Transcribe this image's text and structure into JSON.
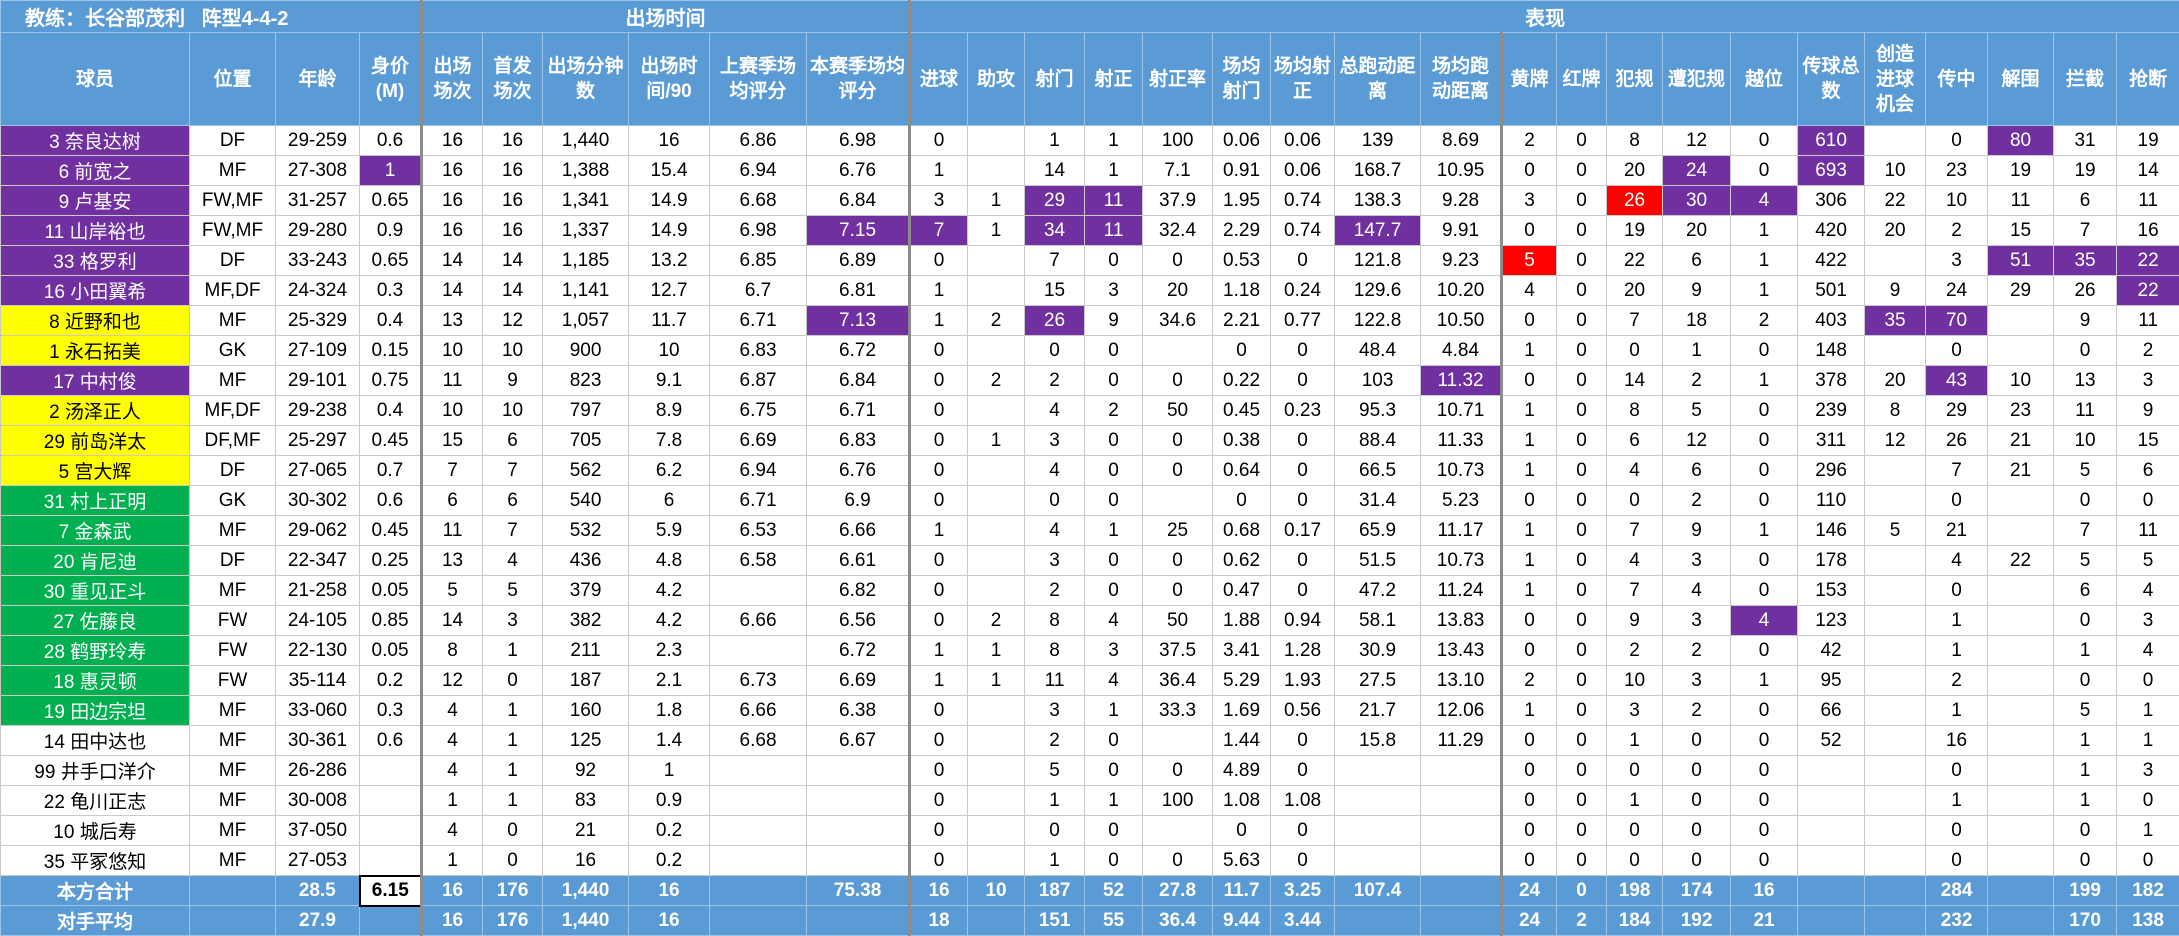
{
  "header": {
    "groups": [
      "教练：长谷部茂利   阵型4-4-2",
      "出场时间",
      "表现"
    ],
    "columns": [
      "球员",
      "位置",
      "年龄",
      "身价(M)",
      "出场场次",
      "首发场次",
      "出场分钟数",
      "出场时间/90",
      "上赛季场均评分",
      "本赛季场均评分",
      "进球",
      "助攻",
      "射门",
      "射正",
      "射正率",
      "场均射门",
      "场均射正",
      "总跑动距离",
      "场均跑动距离",
      "黄牌",
      "红牌",
      "犯规",
      "遭犯规",
      "越位",
      "传球总数",
      "创造进球机会",
      "传中",
      "解围",
      "拦截",
      "抢断"
    ]
  },
  "table": {
    "rows": [
      {
        "bg": "#7030a0",
        "cells": [
          "3 奈良达树",
          "DF",
          "29-259",
          "0.6",
          "16",
          "16",
          "1,440",
          "16",
          "6.86",
          "6.98",
          "0",
          null,
          "1",
          "1",
          "100",
          "0.06",
          "0.06",
          "139",
          "8.69",
          "2",
          "0",
          "8",
          "12",
          "0",
          {
            "text": "610",
            "bg": "#7030a0"
          },
          null,
          "0",
          {
            "text": "80",
            "bg": "#7030a0"
          },
          "31",
          "19"
        ]
      },
      {
        "bg": "#7030a0",
        "cells": [
          "6 前宽之",
          "MF",
          "27-308",
          {
            "text": "1",
            "bg": "#7030a0"
          },
          "16",
          "16",
          "1,388",
          "15.4",
          "6.94",
          "6.76",
          "1",
          null,
          "14",
          "1",
          "7.1",
          "0.91",
          "0.06",
          "168.7",
          "10.95",
          "0",
          "0",
          "20",
          {
            "text": "24",
            "bg": "#7030a0"
          },
          "0",
          {
            "text": "693",
            "bg": "#7030a0"
          },
          "10",
          "23",
          "19",
          "19",
          "14"
        ]
      },
      {
        "bg": "#7030a0",
        "cells": [
          "9 卢基安",
          "FW,MF",
          "31-257",
          "0.65",
          "16",
          "16",
          "1,341",
          "14.9",
          "6.68",
          "6.84",
          "3",
          "1",
          {
            "text": "29",
            "bg": "#7030a0"
          },
          {
            "text": "11",
            "bg": "#7030a0"
          },
          "37.9",
          "1.95",
          "0.74",
          "138.3",
          "9.28",
          "3",
          "0",
          {
            "text": "26",
            "bg": "#ff0000"
          },
          {
            "text": "30",
            "bg": "#7030a0"
          },
          {
            "text": "4",
            "bg": "#7030a0"
          },
          "306",
          "22",
          "10",
          "11",
          "6",
          "11"
        ]
      },
      {
        "bg": "#7030a0",
        "cells": [
          "11 山岸裕也",
          "FW,MF",
          "29-280",
          "0.9",
          "16",
          "16",
          "1,337",
          "14.9",
          "6.98",
          {
            "text": "7.15",
            "bg": "#7030a0"
          },
          {
            "text": "7",
            "bg": "#7030a0"
          },
          "1",
          {
            "text": "34",
            "bg": "#7030a0"
          },
          {
            "text": "11",
            "bg": "#7030a0"
          },
          "32.4",
          "2.29",
          "0.74",
          {
            "text": "147.7",
            "bg": "#7030a0"
          },
          "9.91",
          "0",
          "0",
          "19",
          "20",
          "1",
          "420",
          "20",
          "2",
          "15",
          "7",
          "16"
        ]
      },
      {
        "bg": "#7030a0",
        "cells": [
          "33 格罗利",
          "DF",
          "33-243",
          "0.65",
          "14",
          "14",
          "1,185",
          "13.2",
          "6.85",
          "6.89",
          "0",
          null,
          "7",
          "0",
          "0",
          "0.53",
          "0",
          "121.8",
          "9.23",
          {
            "text": "5",
            "bg": "#ff0000"
          },
          "0",
          "22",
          "6",
          "1",
          "422",
          null,
          "3",
          {
            "text": "51",
            "bg": "#7030a0"
          },
          {
            "text": "35",
            "bg": "#7030a0"
          },
          {
            "text": "22",
            "bg": "#7030a0"
          }
        ]
      },
      {
        "bg": "#7030a0",
        "cells": [
          "16 小田翼希",
          "MF,DF",
          "24-324",
          "0.3",
          "14",
          "14",
          "1,141",
          "12.7",
          "6.7",
          "6.81",
          "1",
          null,
          "15",
          "3",
          "20",
          "1.18",
          "0.24",
          "129.6",
          "10.20",
          "4",
          "0",
          "20",
          "9",
          "1",
          "501",
          "9",
          "24",
          "29",
          "26",
          {
            "text": "22",
            "bg": "#7030a0"
          }
        ]
      },
      {
        "bg": "#ffff00",
        "cells": [
          "8 近野和也",
          "MF",
          "25-329",
          "0.4",
          "13",
          "12",
          "1,057",
          "11.7",
          "6.71",
          {
            "text": "7.13",
            "bg": "#7030a0"
          },
          "1",
          "2",
          {
            "text": "26",
            "bg": "#7030a0"
          },
          "9",
          "34.6",
          "2.21",
          "0.77",
          "122.8",
          "10.50",
          "0",
          "0",
          "7",
          "18",
          "2",
          "403",
          {
            "text": "35",
            "bg": "#7030a0"
          },
          {
            "text": "70",
            "bg": "#7030a0"
          },
          null,
          "9",
          "11"
        ]
      },
      {
        "bg": "#ffff00",
        "cells": [
          "1 永石拓美",
          "GK",
          "27-109",
          "0.15",
          "10",
          "10",
          "900",
          "10",
          "6.83",
          "6.72",
          "0",
          null,
          "0",
          "0",
          null,
          "0",
          "0",
          "48.4",
          "4.84",
          "1",
          "0",
          "0",
          "1",
          "0",
          "148",
          null,
          "0",
          null,
          "0",
          "2"
        ]
      },
      {
        "bg": "#7030a0",
        "cells": [
          "17 中村俊",
          "MF",
          "29-101",
          "0.75",
          "11",
          "9",
          "823",
          "9.1",
          "6.87",
          "6.84",
          "0",
          "2",
          "2",
          "0",
          "0",
          "0.22",
          "0",
          "103",
          {
            "text": "11.32",
            "bg": "#7030a0"
          },
          "0",
          "0",
          "14",
          "2",
          "1",
          "378",
          "20",
          {
            "text": "43",
            "bg": "#7030a0"
          },
          "10",
          "13",
          "3"
        ]
      },
      {
        "bg": "#ffff00",
        "cells": [
          "2 汤泽正人",
          "MF,DF",
          "29-238",
          "0.4",
          "10",
          "10",
          "797",
          "8.9",
          "6.75",
          "6.71",
          "0",
          null,
          "4",
          "2",
          "50",
          "0.45",
          "0.23",
          "95.3",
          "10.71",
          "1",
          "0",
          "8",
          "5",
          "0",
          "239",
          "8",
          "29",
          "23",
          "11",
          "9"
        ]
      },
      {
        "bg": "#ffff00",
        "cells": [
          "29 前岛洋太",
          "DF,MF",
          "25-297",
          "0.45",
          "15",
          "6",
          "705",
          "7.8",
          "6.69",
          "6.83",
          "0",
          "1",
          "3",
          "0",
          "0",
          "0.38",
          "0",
          "88.4",
          "11.33",
          "1",
          "0",
          "6",
          "12",
          "0",
          "311",
          "12",
          "26",
          "21",
          "10",
          "15"
        ]
      },
      {
        "bg": "#ffff00",
        "cells": [
          "5 宫大辉",
          "DF",
          "27-065",
          "0.7",
          "7",
          "7",
          "562",
          "6.2",
          "6.94",
          "6.76",
          "0",
          null,
          "4",
          "0",
          "0",
          "0.64",
          "0",
          "66.5",
          "10.73",
          "1",
          "0",
          "4",
          "6",
          "0",
          "296",
          null,
          "7",
          "21",
          "5",
          "6"
        ]
      },
      {
        "bg": "#00b050",
        "cells": [
          "31 村上正明",
          "GK",
          "30-302",
          "0.6",
          "6",
          "6",
          "540",
          "6",
          "6.71",
          "6.9",
          "0",
          null,
          "0",
          "0",
          null,
          "0",
          "0",
          "31.4",
          "5.23",
          "0",
          "0",
          "0",
          "2",
          "0",
          "110",
          null,
          "0",
          null,
          "0",
          "0"
        ]
      },
      {
        "bg": "#00b050",
        "cells": [
          "7 金森武",
          "MF",
          "29-062",
          "0.45",
          "11",
          "7",
          "532",
          "5.9",
          "6.53",
          "6.66",
          "1",
          null,
          "4",
          "1",
          "25",
          "0.68",
          "0.17",
          "65.9",
          "11.17",
          "1",
          "0",
          "7",
          "9",
          "1",
          "146",
          "5",
          "21",
          null,
          "7",
          "11"
        ]
      },
      {
        "bg": "#00b050",
        "cells": [
          "20 肯尼迪",
          "DF",
          "22-347",
          "0.25",
          "13",
          "4",
          "436",
          "4.8",
          "6.58",
          "6.61",
          "0",
          null,
          "3",
          "0",
          "0",
          "0.62",
          "0",
          "51.5",
          "10.73",
          "1",
          "0",
          "4",
          "3",
          "0",
          "178",
          null,
          "4",
          "22",
          "5",
          "5"
        ]
      },
      {
        "bg": "#00b050",
        "cells": [
          "30 重见正斗",
          "MF",
          "21-258",
          "0.05",
          "5",
          "5",
          "379",
          "4.2",
          null,
          "6.82",
          "0",
          null,
          "2",
          "0",
          "0",
          "0.47",
          "0",
          "47.2",
          "11.24",
          "1",
          "0",
          "7",
          "4",
          "0",
          "153",
          null,
          "0",
          null,
          "6",
          "4"
        ]
      },
      {
        "bg": "#00b050",
        "cells": [
          "27 佐藤良",
          "FW",
          "24-105",
          "0.85",
          "14",
          "3",
          "382",
          "4.2",
          "6.66",
          "6.56",
          "0",
          "2",
          "8",
          "4",
          "50",
          "1.88",
          "0.94",
          "58.1",
          "13.83",
          "0",
          "0",
          "9",
          "3",
          {
            "text": "4",
            "bg": "#7030a0"
          },
          "123",
          null,
          "1",
          null,
          "0",
          "3"
        ]
      },
      {
        "bg": "#00b050",
        "cells": [
          "28 鹤野玲寿",
          "FW",
          "22-130",
          "0.05",
          "8",
          "1",
          "211",
          "2.3",
          null,
          "6.72",
          "1",
          "1",
          "8",
          "3",
          "37.5",
          "3.41",
          "1.28",
          "30.9",
          "13.43",
          "0",
          "0",
          "2",
          "2",
          "0",
          "42",
          null,
          "1",
          null,
          "1",
          "4"
        ]
      },
      {
        "bg": "#00b050",
        "cells": [
          "18 惠灵顿",
          "FW",
          "35-114",
          "0.2",
          "12",
          "0",
          "187",
          "2.1",
          "6.73",
          "6.69",
          "1",
          "1",
          "11",
          "4",
          "36.4",
          "5.29",
          "1.93",
          "27.5",
          "13.10",
          "2",
          "0",
          "10",
          "3",
          "1",
          "95",
          null,
          "2",
          null,
          "0",
          "0"
        ]
      },
      {
        "bg": "#00b050",
        "cells": [
          "19 田边宗坦",
          "MF",
          "33-060",
          "0.3",
          "4",
          "1",
          "160",
          "1.8",
          "6.66",
          "6.38",
          "0",
          null,
          "3",
          "1",
          "33.3",
          "1.69",
          "0.56",
          "21.7",
          "12.06",
          "1",
          "0",
          "3",
          "2",
          "0",
          "66",
          null,
          "1",
          null,
          "5",
          "1"
        ]
      },
      {
        "bg": "#ffffff",
        "cells": [
          "14 田中达也",
          "MF",
          "30-361",
          "0.6",
          "4",
          "1",
          "125",
          "1.4",
          "6.68",
          "6.67",
          "0",
          null,
          "2",
          "0",
          null,
          "1.44",
          "0",
          "15.8",
          "11.29",
          "0",
          "0",
          "1",
          "0",
          "0",
          "52",
          null,
          "16",
          null,
          "1",
          "1"
        ]
      },
      {
        "bg": "#ffffff",
        "cells": [
          "99 井手口洋介",
          "MF",
          "26-286",
          null,
          "4",
          "1",
          "92",
          "1",
          null,
          null,
          "0",
          null,
          "5",
          "0",
          "0",
          "4.89",
          "0",
          null,
          null,
          "0",
          "0",
          "0",
          "0",
          "0",
          null,
          null,
          "0",
          null,
          "1",
          "3"
        ]
      },
      {
        "bg": "#ffffff",
        "cells": [
          "22 龟川正志",
          "MF",
          "30-008",
          null,
          "1",
          "1",
          "83",
          "0.9",
          null,
          null,
          "0",
          null,
          "1",
          "1",
          "100",
          "1.08",
          "1.08",
          null,
          null,
          "0",
          "0",
          "1",
          "0",
          "0",
          null,
          null,
          "1",
          null,
          "1",
          "0"
        ]
      },
      {
        "bg": "#ffffff",
        "cells": [
          "10 城后寿",
          "MF",
          "37-050",
          null,
          "4",
          "0",
          "21",
          "0.2",
          null,
          null,
          "0",
          null,
          "0",
          "0",
          null,
          "0",
          "0",
          null,
          null,
          "0",
          "0",
          "0",
          "0",
          "0",
          null,
          null,
          "0",
          null,
          "0",
          "1"
        ]
      },
      {
        "bg": "#ffffff",
        "cells": [
          "35 平冢悠知",
          "MF",
          "27-053",
          null,
          "1",
          "0",
          "16",
          "0.2",
          null,
          null,
          "0",
          null,
          "1",
          "0",
          "0",
          "5.63",
          "0",
          null,
          null,
          "0",
          "0",
          "0",
          "0",
          "0",
          null,
          null,
          "0",
          null,
          "0",
          "0"
        ]
      }
    ],
    "footer": [
      {
        "cells": [
          "本方合计",
          null,
          "28.5",
          {
            "text": "6.15",
            "bg": "#ffffff"
          },
          "16",
          "176",
          "1,440",
          "16",
          null,
          "75.38",
          "16",
          "10",
          "187",
          "52",
          "27.8",
          "11.7",
          "3.25",
          "107.4",
          null,
          "24",
          "0",
          "198",
          "174",
          "16",
          null,
          null,
          "284",
          null,
          "199",
          "182"
        ]
      },
      {
        "cells": [
          "对手平均",
          null,
          "27.9",
          null,
          "16",
          "176",
          "1,440",
          "16",
          null,
          null,
          "18",
          null,
          "151",
          "55",
          "36.4",
          "9.44",
          "3.44",
          null,
          null,
          "24",
          "2",
          "184",
          "192",
          "21",
          null,
          null,
          "232",
          null,
          "170",
          "138"
        ]
      }
    ]
  }
}
